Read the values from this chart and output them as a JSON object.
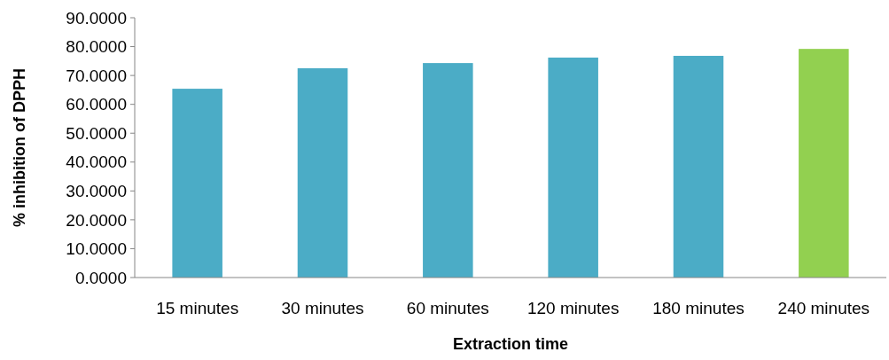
{
  "chart_data": {
    "type": "bar",
    "xlabel": "Extraction time",
    "ylabel": "% inhibition of DPPH",
    "categories": [
      "15 minutes",
      "30 minutes",
      "60 minutes",
      "120 minutes",
      "180 minutes",
      "240 minutes"
    ],
    "values": [
      65.4,
      72.5,
      74.3,
      76.2,
      76.8,
      79.2
    ],
    "colors": [
      "#4bacc6",
      "#4bacc6",
      "#4bacc6",
      "#4bacc6",
      "#4bacc6",
      "#92d050"
    ],
    "ylim": [
      0,
      90
    ],
    "yticks": [
      {
        "value": 0,
        "label": "0.0000"
      },
      {
        "value": 10,
        "label": "10.0000"
      },
      {
        "value": 20,
        "label": "20.0000"
      },
      {
        "value": 30,
        "label": "30.0000"
      },
      {
        "value": 40,
        "label": "40.0000"
      },
      {
        "value": 50,
        "label": "50.0000"
      },
      {
        "value": 60,
        "label": "60.0000"
      },
      {
        "value": 70,
        "label": "70.0000"
      },
      {
        "value": 80,
        "label": "80.0000"
      },
      {
        "value": 90,
        "label": "90.0000"
      }
    ]
  }
}
